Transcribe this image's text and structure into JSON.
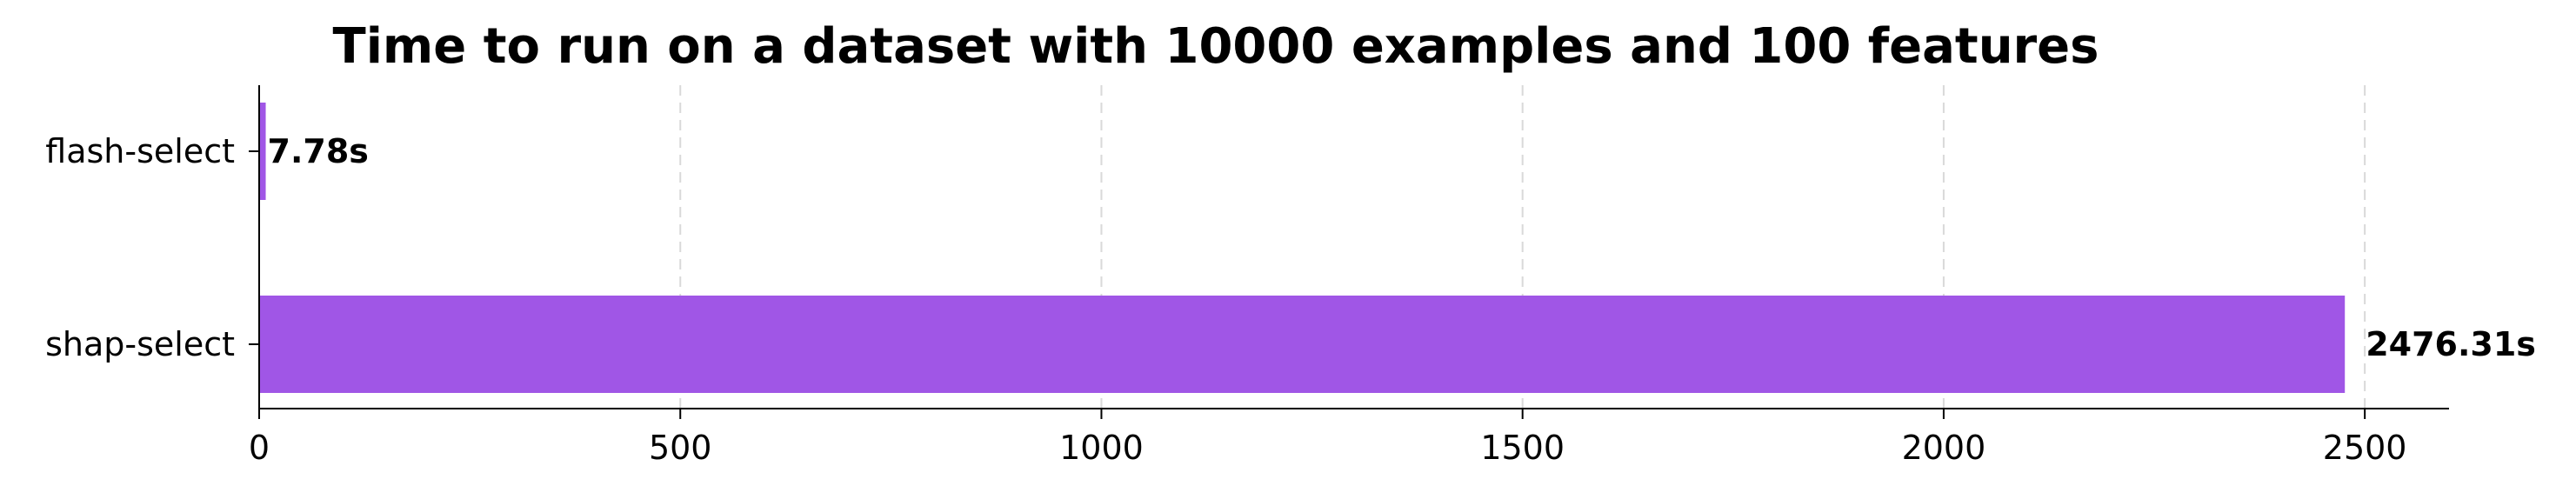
{
  "chart_data": {
    "type": "bar",
    "orientation": "horizontal",
    "title": "Time to run on a dataset with 10000 examples and 100 features",
    "xlabel": "",
    "ylabel": "",
    "categories": [
      "flash-select",
      "shap-select"
    ],
    "values": [
      7.78,
      2476.31
    ],
    "value_labels": [
      "7.78s",
      "2476.31s"
    ],
    "xlim": [
      0,
      2600
    ],
    "xticks": [
      0,
      500,
      1000,
      1500,
      2000,
      2500
    ],
    "xtick_labels": [
      "0",
      "500",
      "1000",
      "1500",
      "2000",
      "2500"
    ],
    "grid": "vertical dashed",
    "bar_color": "#a056e6",
    "spines": "left and bottom only"
  }
}
